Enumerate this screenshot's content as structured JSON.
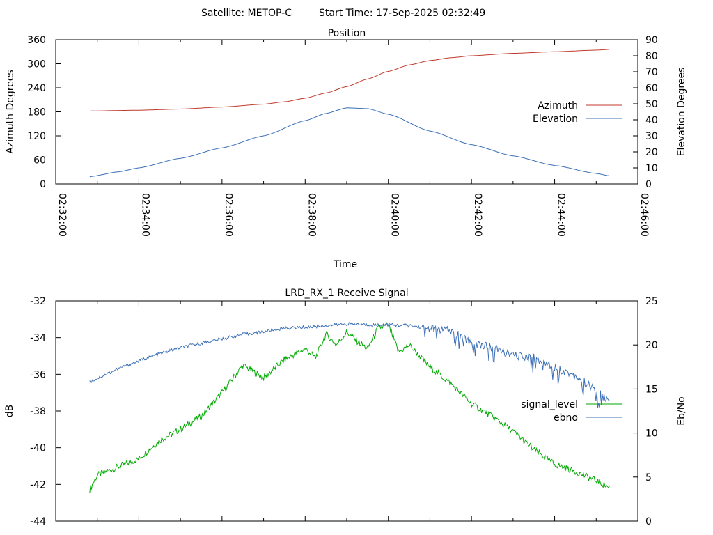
{
  "header": {
    "satellite": "Satellite: METOP-C",
    "start_time": "Start Time: 17-Sep-2025 02:32:49"
  },
  "chart_data": [
    {
      "type": "line",
      "title": "Position",
      "xlabel": "Time",
      "ylabel": "Azimuth Degrees",
      "y2label": "Elevation Degrees",
      "x_ticks": [
        "02:32:00",
        "02:34:00",
        "02:36:00",
        "02:38:00",
        "02:40:00",
        "02:42:00",
        "02:44:00",
        "02:46:00"
      ],
      "xlim": [
        "02:32:00",
        "02:46:00"
      ],
      "ylim": [
        0,
        360
      ],
      "y_ticks": [
        0,
        60,
        120,
        180,
        240,
        300,
        360
      ],
      "y2lim": [
        0,
        90
      ],
      "y2_ticks": [
        0,
        10,
        20,
        30,
        40,
        50,
        60,
        70,
        80,
        90
      ],
      "legend_position": "right",
      "series": [
        {
          "name": "Azimuth",
          "axis": "left",
          "color": "#c0392b",
          "x": [
            "02:32:49",
            "02:34:00",
            "02:35:00",
            "02:36:00",
            "02:37:00",
            "02:37:30",
            "02:38:00",
            "02:38:30",
            "02:39:00",
            "02:39:30",
            "02:40:00",
            "02:40:30",
            "02:41:00",
            "02:41:30",
            "02:42:00",
            "02:43:00",
            "02:44:00",
            "02:45:00",
            "02:45:20"
          ],
          "values": [
            182,
            184,
            187,
            192,
            199,
            205,
            214,
            227,
            243,
            262,
            281,
            297,
            308,
            315,
            320,
            326,
            330,
            334,
            336
          ]
        },
        {
          "name": "Elevation",
          "axis": "right",
          "color": "#3b6fb6",
          "x": [
            "02:32:49",
            "02:33:30",
            "02:34:00",
            "02:35:00",
            "02:36:00",
            "02:37:00",
            "02:38:00",
            "02:38:30",
            "02:39:00",
            "02:39:30",
            "02:40:00",
            "02:41:00",
            "02:42:00",
            "02:43:00",
            "02:44:00",
            "02:45:00",
            "02:45:20"
          ],
          "values": [
            4.5,
            7.5,
            10,
            16,
            22.5,
            30,
            39.5,
            44,
            47.5,
            47,
            43.5,
            33,
            24.5,
            17.5,
            11.5,
            6.5,
            5
          ]
        }
      ]
    },
    {
      "type": "line",
      "title": "LRD_RX_1 Receive Signal",
      "ylabel": "dB",
      "y2label": "Eb/No",
      "x_ticks": [
        "02:32:00",
        "02:34:00",
        "02:36:00",
        "02:38:00",
        "02:40:00",
        "02:42:00",
        "02:44:00",
        "02:46:00"
      ],
      "xlim": [
        "02:32:00",
        "02:46:00"
      ],
      "ylim": [
        -44,
        -32
      ],
      "y_ticks": [
        -44,
        -42,
        -40,
        -38,
        -36,
        -34,
        -32
      ],
      "y2lim": [
        0,
        25
      ],
      "y2_ticks": [
        0,
        5,
        10,
        15,
        20,
        25
      ],
      "legend_position": "right",
      "series": [
        {
          "name": "signal_level",
          "axis": "left",
          "color": "#00aa00",
          "x": [
            "02:32:49",
            "02:33:00",
            "02:34:00",
            "02:34:30",
            "02:35:00",
            "02:35:30",
            "02:36:00",
            "02:36:30",
            "02:37:00",
            "02:37:30",
            "02:38:00",
            "02:38:15",
            "02:38:30",
            "02:38:45",
            "02:39:00",
            "02:39:15",
            "02:39:30",
            "02:39:45",
            "02:40:00",
            "02:40:15",
            "02:40:30",
            "02:41:00",
            "02:41:30",
            "02:42:00",
            "02:42:30",
            "02:43:00",
            "02:43:30",
            "02:44:00",
            "02:44:30",
            "02:45:00",
            "02:45:20"
          ],
          "values": [
            -42.3,
            -41.5,
            -40.6,
            -39.6,
            -39.0,
            -38.3,
            -37.0,
            -35.5,
            -36.2,
            -35.2,
            -34.6,
            -35.1,
            -33.8,
            -34.4,
            -33.7,
            -34.2,
            -34.6,
            -33.5,
            -33.3,
            -34.8,
            -34.4,
            -35.6,
            -36.5,
            -37.6,
            -38.3,
            -39.1,
            -40.1,
            -40.9,
            -41.3,
            -41.8,
            -42.2
          ]
        },
        {
          "name": "ebno",
          "axis": "right",
          "color": "#3b6fb6",
          "x": [
            "02:32:49",
            "02:33:30",
            "02:34:00",
            "02:34:30",
            "02:35:00",
            "02:35:30",
            "02:36:00",
            "02:36:30",
            "02:37:00",
            "02:37:30",
            "02:38:00",
            "02:38:30",
            "02:39:00",
            "02:39:30",
            "02:40:00",
            "02:40:30",
            "02:41:00",
            "02:41:30",
            "02:42:00",
            "02:42:30",
            "02:43:00",
            "02:43:30",
            "02:44:00",
            "02:44:30",
            "02:45:00",
            "02:45:20"
          ],
          "values": [
            15.8,
            17.3,
            18.2,
            19.0,
            19.7,
            20.2,
            20.7,
            21.2,
            21.5,
            21.9,
            22.0,
            22.2,
            22.4,
            22.3,
            22.3,
            22.2,
            21.9,
            21.6,
            20.3,
            19.7,
            18.8,
            18.6,
            17.5,
            16.5,
            14.8,
            13.5
          ]
        }
      ]
    }
  ]
}
